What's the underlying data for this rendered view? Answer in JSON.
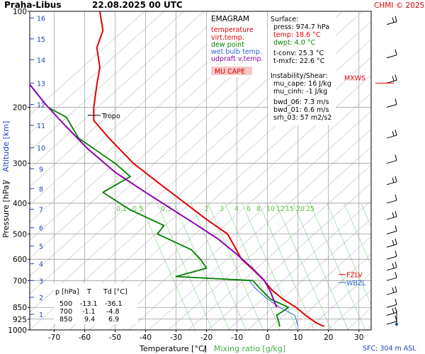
{
  "header": {
    "station": "Praha-Libus",
    "datetime": "22.08.2025 00 UTC",
    "credit": "CHMI © 2025",
    "sfc": "SFC: 304 m ASL"
  },
  "axes": {
    "ylabel_pressure": "Pressure [hPa]",
    "ylabel_sep": "/",
    "ylabel_alt": "Altitude [km]",
    "xlabel_temp": "Temperature [°C]",
    "xlabel_sep": "/",
    "xlabel_mix": "Mixing ratio [g/kg]",
    "pressure_ticks": [
      100,
      200,
      300,
      400,
      500,
      600,
      700,
      850,
      925,
      1000
    ],
    "pressure_tick_labels": [
      "100",
      "200",
      "300",
      "400",
      "500",
      "600",
      "700",
      "850",
      "925",
      "1000"
    ],
    "temp_ticks": [
      -70,
      -60,
      -50,
      -40,
      -30,
      -20,
      -10,
      0,
      10,
      20,
      30
    ],
    "temp_tick_labels": [
      "-70",
      "-60",
      "-50",
      "-40",
      "-30",
      "-20",
      "-10",
      "0",
      "10",
      "20",
      "30"
    ],
    "alt_ticks": [
      {
        "km": "1",
        "p": 893
      },
      {
        "km": "2",
        "p": 790
      },
      {
        "km": "3",
        "p": 700
      },
      {
        "km": "4",
        "p": 620
      },
      {
        "km": "5",
        "p": 545
      },
      {
        "km": "6",
        "p": 478
      },
      {
        "km": "7",
        "p": 418
      },
      {
        "km": "8",
        "p": 360
      },
      {
        "km": "9",
        "p": 312
      },
      {
        "km": "10",
        "p": 268
      },
      {
        "km": "11",
        "p": 228
      },
      {
        "km": "12",
        "p": 196
      },
      {
        "km": "13",
        "p": 168
      },
      {
        "km": "14",
        "p": 142
      },
      {
        "km": "15",
        "p": 122
      },
      {
        "km": "16",
        "p": 105
      }
    ],
    "mixing_labels": [
      "0.1",
      "0.5",
      "0.5",
      "2",
      "3",
      "4",
      "6",
      "8",
      "10",
      "12",
      "15",
      "20",
      "25"
    ]
  },
  "legend": {
    "title": "EMAGRAM",
    "items": [
      {
        "label": "temperature",
        "color": "#e00000"
      },
      {
        "label": "virt.temp.",
        "color": "#e00000"
      },
      {
        "label": "dew point",
        "color": "#008000"
      },
      {
        "label": "wet bulb temp.",
        "color": "#3060d0"
      },
      {
        "label": "udpraft v.temp.",
        "color": "#9000b0"
      }
    ],
    "mucape_label": "MU CAPE"
  },
  "stats": {
    "surface_title": "Surface:",
    "surface": [
      "press: 974.7 hPa",
      "temp: 18.6 °C",
      "dwpt: 4.0 °C"
    ],
    "conv": [
      "t-conv: 25.3 °C",
      "t-mxfc: 22.6 °C"
    ],
    "instab_title": "Instability/Shear:",
    "instab": [
      "mu_cape: 16 J/kg",
      "mu_cinh: -1 J/kg"
    ],
    "shear": [
      "bwd_06: 7.3 m/s",
      "bwd_01: 6.6 m/s",
      "srh_03: 57 m2/s2"
    ]
  },
  "table": {
    "headers": [
      "p [hPa]",
      "T",
      "Td [°C]"
    ],
    "rows": [
      [
        "500",
        "-13.1",
        "-36.1"
      ],
      [
        "700",
        "-1.1",
        "-4.8"
      ],
      [
        "850",
        "9.4",
        "6.9"
      ]
    ]
  },
  "levels": {
    "tropo": "Tropo",
    "tropo_p": 212,
    "mxws": "MXWS",
    "mxws_p": 168,
    "fzlv": "FZLV",
    "fzlv_p": 670,
    "wbzl": "WBZL",
    "wbzl_p": 710
  },
  "colors": {
    "temperature": "#e00000",
    "dewpoint": "#008000",
    "wetbulb": "#3060d0",
    "parcel": "#9000b0",
    "mixing": "#80d080",
    "altitude": "#2040c0",
    "grid": "#999999"
  },
  "chart_data": {
    "type": "line",
    "title": "Praha-Libus 22.08.2025 00 UTC",
    "xlabel": "Temperature [°C] / Mixing ratio [g/kg]",
    "ylabel": "Pressure [hPa] / Altitude [km]",
    "xlim": [
      -78,
      34
    ],
    "ylim": [
      1000,
      100
    ],
    "y_scale": "log",
    "series": [
      {
        "name": "temperature",
        "points": [
          [
            18.6,
            975
          ],
          [
            16,
            950
          ],
          [
            12.5,
            900
          ],
          [
            9.4,
            850
          ],
          [
            5,
            800
          ],
          [
            1.5,
            750
          ],
          [
            -1.1,
            700
          ],
          [
            -4.5,
            650
          ],
          [
            -8.5,
            600
          ],
          [
            -13.1,
            500
          ],
          [
            -20,
            450
          ],
          [
            -27,
            400
          ],
          [
            -35,
            350
          ],
          [
            -44,
            300
          ],
          [
            -52,
            250
          ],
          [
            -57,
            220
          ],
          [
            -57,
            200
          ],
          [
            -56,
            170
          ],
          [
            -55,
            150
          ],
          [
            -56,
            130
          ],
          [
            -54,
            115
          ],
          [
            -55,
            100
          ]
        ]
      },
      {
        "name": "dew point",
        "points": [
          [
            4,
            975
          ],
          [
            3.8,
            950
          ],
          [
            3,
            900
          ],
          [
            6.9,
            850
          ],
          [
            1,
            800
          ],
          [
            -2,
            750
          ],
          [
            -4.8,
            700
          ],
          [
            -30,
            680
          ],
          [
            -20,
            640
          ],
          [
            -22,
            600
          ],
          [
            -25,
            560
          ],
          [
            -36.1,
            500
          ],
          [
            -34,
            470
          ],
          [
            -45,
            420
          ],
          [
            -54,
            370
          ],
          [
            -45,
            330
          ],
          [
            -50,
            300
          ],
          [
            -62,
            250
          ],
          [
            -66,
            215
          ],
          [
            -72,
            200
          ],
          [
            -79,
            165
          ]
        ]
      },
      {
        "name": "wet bulb temp.",
        "points": [
          [
            10,
            975
          ],
          [
            9,
            900
          ],
          [
            4,
            850
          ],
          [
            0,
            800
          ],
          [
            -4,
            740
          ],
          [
            -6,
            700
          ]
        ]
      },
      {
        "name": "udpraft v.temp.",
        "points": [
          [
            3,
            850
          ],
          [
            1,
            760
          ],
          [
            -1,
            700
          ],
          [
            -5,
            640
          ],
          [
            -10,
            580
          ],
          [
            -16,
            520
          ],
          [
            -23,
            470
          ],
          [
            -31,
            420
          ],
          [
            -40,
            370
          ],
          [
            -50,
            320
          ],
          [
            -59,
            270
          ],
          [
            -67,
            225
          ],
          [
            -73,
            195
          ],
          [
            -79,
            165
          ]
        ]
      }
    ]
  }
}
